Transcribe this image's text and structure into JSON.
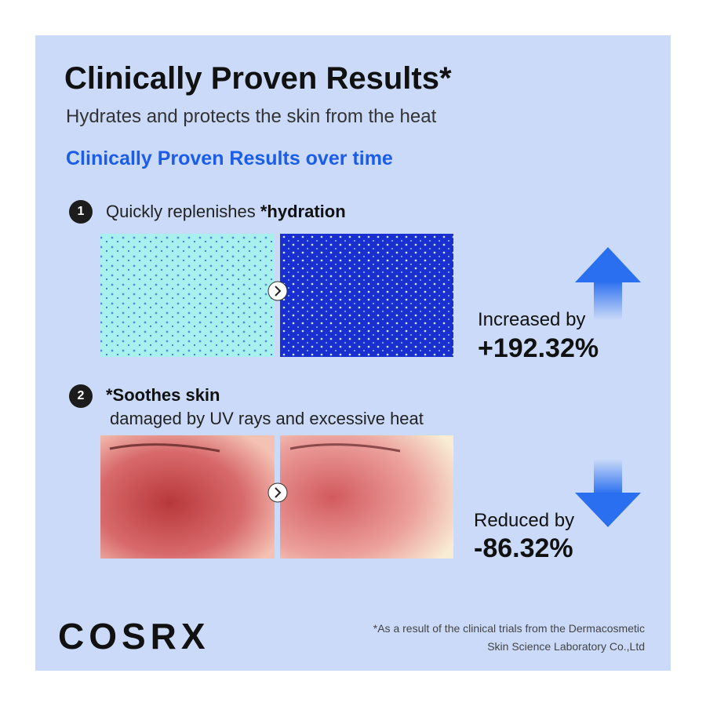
{
  "header": {
    "title": "Clinically Proven Results*",
    "subtitle": "Hydrates and protects the skin from the heat"
  },
  "section_title": "Clinically Proven Results over time",
  "items": [
    {
      "number": "1",
      "label": "Quickly replenishes ",
      "label_bold": "*hydration",
      "result_label": "Increased by",
      "result_value": "+192.32%"
    },
    {
      "number": "2",
      "label_bold": "*Soothes skin",
      "label": "damaged by UV rays and excessive heat",
      "result_label": "Reduced by",
      "result_value": "-86.32%"
    }
  ],
  "footer": {
    "brand": "COSRX",
    "note_lines": [
      "*As a result of the clinical trials from the Dermacosmetic",
      "Skin Science Laboratory Co.,Ltd"
    ]
  }
}
